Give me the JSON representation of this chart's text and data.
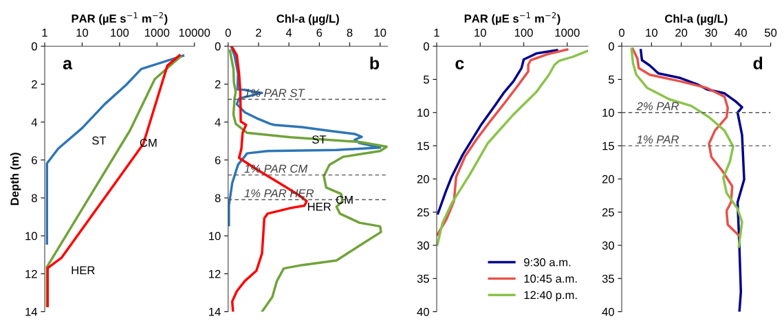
{
  "chart_data": [
    {
      "type": "line",
      "xlabel": "PAR (µE s$^{−1}$ m$^{−2}$)",
      "ylabel": "Depth (m)",
      "log": "x",
      "xlim": [
        1,
        10000
      ],
      "xticks": [
        1,
        10,
        100,
        1000,
        10000
      ],
      "ylim": [
        14,
        0
      ],
      "yticks": [
        0,
        2,
        4,
        6,
        8,
        10,
        12,
        14
      ],
      "series": [
        {
          "name": "ST",
          "color": "#2e75b6",
          "x": [
            5000,
            380,
            150,
            40,
            10,
            2.3,
            1.15,
            1.15
          ],
          "values": [
            0.5,
            1.2,
            2.04,
            3.06,
            4.32,
            5.4,
            6.18,
            10.4
          ]
        },
        {
          "name": "CM",
          "color": "#70a33a",
          "x": [
            4300,
            870,
            190,
            1.15,
            1.15
          ],
          "values": [
            0.54,
            1.74,
            4.44,
            11.64,
            13.7
          ]
        },
        {
          "name": "HER",
          "color": "#ff0000",
          "x": [
            4000,
            1900,
            430,
            2.8,
            1.2,
            1.2
          ],
          "values": [
            0.48,
            1.02,
            5.16,
            11.16,
            11.7,
            13.7
          ]
        }
      ],
      "annotations": [
        "a"
      ]
    },
    {
      "type": "line",
      "xlabel": "Chl-a (µg/L)",
      "xlim": [
        0,
        10.5
      ],
      "xticks": [
        0,
        2,
        4,
        6,
        8,
        10
      ],
      "ylim": [
        14,
        0
      ],
      "yticks": [
        0,
        2,
        4,
        6,
        8,
        10,
        12,
        14
      ],
      "series": [
        {
          "name": "ST",
          "color": "#2e75b6",
          "x": [
            0.2,
            0.42,
            0.65,
            0.62,
            1.1,
            1.7,
            2.23,
            0.72,
            0.57,
            1.1,
            1.86,
            2.76,
            3.05,
            4.87,
            6.53,
            8.33,
            8.79,
            8.33,
            8.64,
            10,
            7.13,
            2.6,
            1.25,
            0.65,
            0.27,
            0.05,
            0.05
          ],
          "values": [
            0,
            0.5,
            1.44,
            2.28,
            2.3,
            2.4,
            2.46,
            2.76,
            3.06,
            3.49,
            3.79,
            4.09,
            4.15,
            4.27,
            4.45,
            4.63,
            4.78,
            4.93,
            5.1,
            5.35,
            5.47,
            5.53,
            5.65,
            6.25,
            7.21,
            8.41,
            9.43
          ]
        },
        {
          "name": "CM",
          "color": "#70a33a",
          "x": [
            0.12,
            0.35,
            0.38,
            0.5,
            0.42,
            0.35,
            0.5,
            1.25,
            4.12,
            8.64,
            10.45,
            10,
            7.58,
            6.67,
            6.3,
            6.45,
            7.44,
            7.52,
            7.13,
            7.36,
            8.64,
            10,
            10.06,
            8.64,
            7.13,
            4.87,
            3.66,
            3.21,
            2.91,
            2.23
          ],
          "values": [
            0.24,
            1.2,
            1.92,
            2.4,
            2.76,
            3.6,
            4.09,
            4.57,
            4.8,
            5.05,
            5.3,
            5.53,
            5.83,
            6.25,
            6.85,
            7.45,
            7.79,
            8.17,
            8.47,
            8.83,
            9.31,
            9.5,
            9.8,
            10.52,
            11.3,
            11.54,
            11.72,
            12.38,
            13.22,
            14
          ]
        },
        {
          "name": "HER",
          "color": "#ff0000",
          "x": [
            0.27,
            0.57,
            0.72,
            0.8,
            0.83,
            1.18,
            0.95,
            0.87,
            0.72,
            1.86,
            3.36,
            4.57,
            5.17,
            5.02,
            4.12,
            2.6,
            2.38,
            2.23,
            1.86,
            1.1,
            0.57,
            0.27,
            0.32
          ],
          "values": [
            0.06,
            0.48,
            1.44,
            2.4,
            3.97,
            4.15,
            4.57,
            5.41,
            5.89,
            6.49,
            7.21,
            7.81,
            8.17,
            8.41,
            8.53,
            8.83,
            9.07,
            10.93,
            11.84,
            12.38,
            12.92,
            13.46,
            14
          ]
        }
      ],
      "ref_lines": [
        {
          "axis": "y",
          "value": 2.8,
          "label": "1% PAR ST",
          "color": "#555555",
          "line_style": "dashed"
        },
        {
          "axis": "y",
          "value": 6.79,
          "label": "1% PAR CM",
          "color": "#555555",
          "line_style": "dashed"
        },
        {
          "axis": "y",
          "value": 8.09,
          "label": "1% PAR HER",
          "color": "#555555",
          "line_style": "dashed"
        }
      ],
      "annotations": [
        "b"
      ]
    },
    {
      "type": "line",
      "xlabel": "PAR (µE s$^{−1}$ m$^{−2}$)",
      "log": "x",
      "xlim": [
        1,
        3000
      ],
      "xticks": [
        1,
        10,
        100,
        1000
      ],
      "ylim": [
        40,
        0
      ],
      "yticks": [
        0,
        5,
        10,
        15,
        20,
        25,
        30,
        35,
        40
      ],
      "legend": "bottom right",
      "series": [
        {
          "name": "9:30 a.m.",
          "color": "#00008b",
          "x": [
            580,
            195,
            100,
            89,
            58,
            36,
            22,
            10.6,
            6.6,
            4.0,
            2.2,
            1.6,
            1.07
          ],
          "values": [
            0.6,
            1.1,
            2.0,
            3.3,
            5.3,
            6.9,
            8.9,
            11.8,
            14.0,
            16.3,
            19.7,
            22.0,
            25.2
          ]
        },
        {
          "name": "10:45 a.m.",
          "color": "#e8504a",
          "x": [
            1000,
            355,
            145,
            127,
            127,
            74,
            36,
            17,
            8.3,
            4.5,
            2.8,
            2.5,
            1.7,
            1.04
          ],
          "values": [
            0.5,
            1.2,
            2.1,
            2.8,
            3.8,
            5.9,
            8.6,
            11.3,
            14.0,
            16.6,
            19.7,
            23.3,
            26.0,
            28.4
          ]
        },
        {
          "name": "12:40 p.m.",
          "color": "#8bc34a",
          "x": [
            3000,
            1350,
            660,
            510,
            380,
            195,
            58,
            15,
            5.8,
            2.2,
            1.35,
            1.04
          ],
          "values": [
            0.7,
            1.6,
            2.2,
            2.8,
            4.3,
            6.9,
            10.3,
            14.6,
            19.3,
            23.7,
            26.7,
            29.9
          ]
        }
      ],
      "annotations": [
        "c"
      ]
    },
    {
      "type": "line",
      "xlabel": "Chl-a (µg/L)",
      "xlim": [
        0,
        50
      ],
      "xticks": [
        0,
        10,
        20,
        30,
        40,
        50
      ],
      "ylim": [
        40,
        0
      ],
      "yticks": [
        0,
        5,
        10,
        15,
        20,
        25,
        30,
        35,
        40
      ],
      "series": [
        {
          "color": "#00008b",
          "x": [
            6.4,
            6.8,
            9.4,
            12.3,
            19.7,
            25.6,
            28.6,
            34.5,
            38.2,
            40.4,
            38.9,
            40.4,
            41.1,
            38.9,
            39.5,
            40.0,
            39.5
          ],
          "values": [
            0.6,
            2.1,
            2.9,
            4.1,
            4.8,
            5.8,
            6.5,
            7.1,
            8.3,
            9.2,
            10.0,
            13.4,
            20.1,
            23.5,
            30.2,
            37.0,
            40
          ]
        },
        {
          "color": "#e8504a",
          "x": [
            3.7,
            5.3,
            5.7,
            9.4,
            19.7,
            28.6,
            34.5,
            35.6,
            35.2,
            31.3,
            29.3,
            30.1,
            33.8,
            37.1,
            36.7,
            35.2,
            35.6,
            39.3
          ],
          "values": [
            0.4,
            1.9,
            3.3,
            4.3,
            5.3,
            6.3,
            7.6,
            9.3,
            10.7,
            12.7,
            14.7,
            16.7,
            18.8,
            21.1,
            23.5,
            24.8,
            26.9,
            28.5
          ]
        },
        {
          "color": "#8bc34a",
          "x": [
            3.3,
            3.8,
            4.9,
            8.6,
            16.0,
            23.4,
            29.3,
            34.5,
            37.4,
            36.3,
            34.1,
            35.2,
            38.9,
            40.4,
            39.3
          ],
          "values": [
            0.4,
            2.6,
            4.3,
            6.3,
            8.0,
            9.0,
            10.7,
            12.7,
            15.1,
            17.4,
            19.8,
            22.1,
            24.5,
            26.5,
            30.2
          ]
        }
      ],
      "ref_lines": [
        {
          "axis": "y",
          "value": 10,
          "label": "2% PAR",
          "color": "#555555",
          "line_style": "dashed"
        },
        {
          "axis": "y",
          "value": 15,
          "label": "1% PAR",
          "color": "#555555",
          "line_style": "dashed"
        }
      ],
      "annotations": [
        "d"
      ]
    }
  ]
}
